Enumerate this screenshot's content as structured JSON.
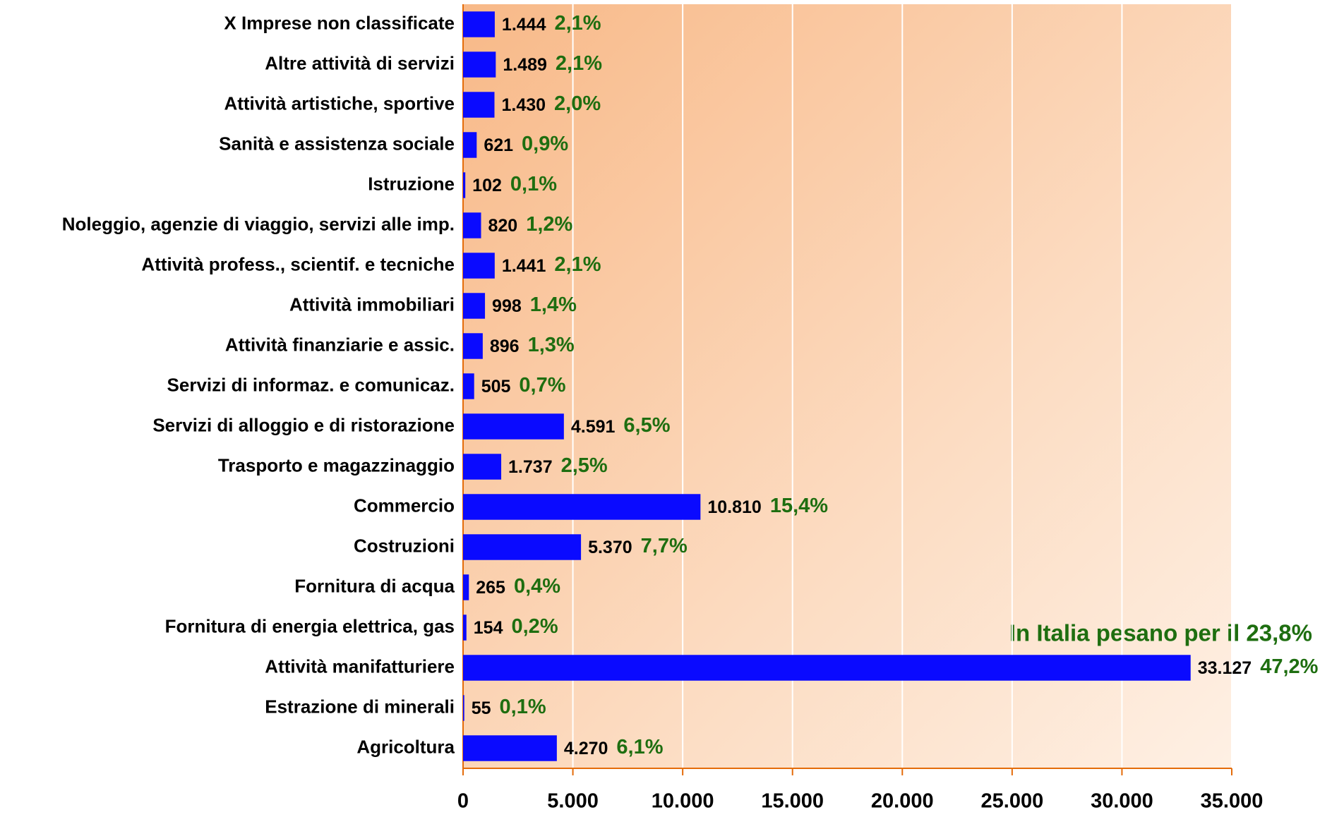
{
  "chart_data": {
    "type": "barh",
    "categories": [
      "X Imprese non classificate",
      "Altre attività di servizi",
      "Attività artistiche, sportive",
      "Sanità e assistenza sociale",
      "Istruzione",
      "Noleggio, agenzie di viaggio, servizi alle imp.",
      "Attività profess., scientif. e tecniche",
      "Attività immobiliari",
      "Attività finanziarie e assic.",
      "Servizi di informaz. e comunicaz.",
      "Servizi di alloggio e di ristorazione",
      "Trasporto e magazzinaggio",
      "Commercio",
      "Costruzioni",
      "Fornitura di acqua",
      "Fornitura di energia elettrica, gas",
      "Attività manifatturiere",
      "Estrazione di minerali",
      "Agricoltura"
    ],
    "values": [
      1444,
      1489,
      1430,
      621,
      102,
      820,
      1441,
      998,
      896,
      505,
      4591,
      1737,
      10810,
      5370,
      265,
      154,
      33127,
      55,
      4270
    ],
    "value_labels": [
      "1.444",
      "1.489",
      "1.430",
      "621",
      "102",
      "820",
      "1.441",
      "998",
      "896",
      "505",
      "4.591",
      "1.737",
      "10.810",
      "5.370",
      "265",
      "154",
      "33.127",
      "55",
      "4.270"
    ],
    "shares": [
      2.1,
      2.1,
      2.0,
      0.9,
      0.1,
      1.2,
      2.1,
      1.4,
      1.3,
      0.7,
      6.5,
      2.5,
      15.4,
      7.7,
      0.4,
      0.2,
      47.2,
      0.1,
      6.1
    ],
    "share_labels": [
      "2,1%",
      "2,1%",
      "2,0%",
      "0,9%",
      "0,1%",
      "1,2%",
      "2,1%",
      "1,4%",
      "1,3%",
      "0,7%",
      "6,5%",
      "2,5%",
      "15,4%",
      "7,7%",
      "0,4%",
      "0,2%",
      "47,2%",
      "0,1%",
      "6,1%"
    ],
    "color": "#0a0aff",
    "xlim": [
      0,
      35000
    ],
    "xticks": [
      0,
      {
        "value": 5000,
        "label": "5.000"
      },
      {
        "value": 10000,
        "label": "10.000"
      },
      {
        "value": 15000,
        "label": "15.000"
      },
      {
        "value": 20000,
        "label": "20.000"
      },
      {
        "value": 25000,
        "label": "25.000"
      },
      {
        "value": 30000,
        "label": "30.000"
      },
      {
        "value": 35000,
        "label": "35.000"
      }
    ],
    "grid": true,
    "annotation": "In Italia pesano per il 23,8%"
  }
}
